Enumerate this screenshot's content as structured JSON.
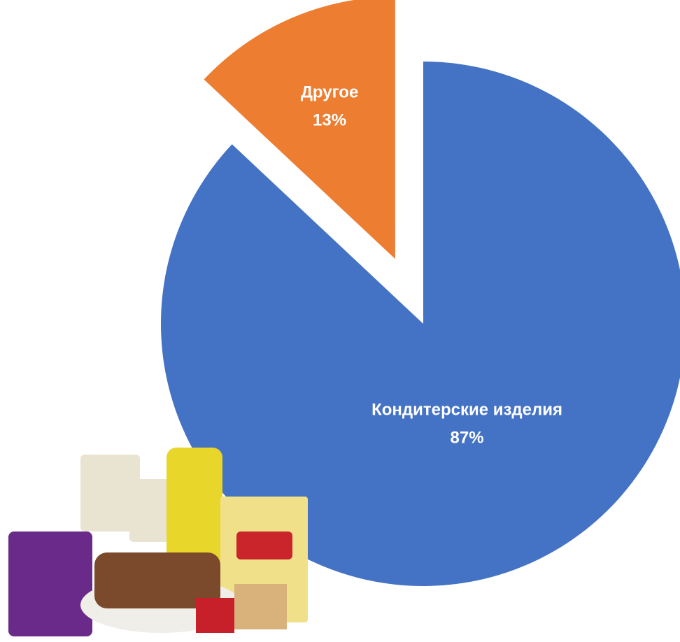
{
  "chart_data": {
    "type": "pie",
    "categories": [
      "Кондитерские изделия",
      "Другое"
    ],
    "values": [
      87,
      13
    ],
    "value_labels": [
      "87%",
      "13%"
    ],
    "colors": [
      "#4472c4",
      "#ed7d31"
    ],
    "exploded": [
      false,
      true
    ]
  }
}
